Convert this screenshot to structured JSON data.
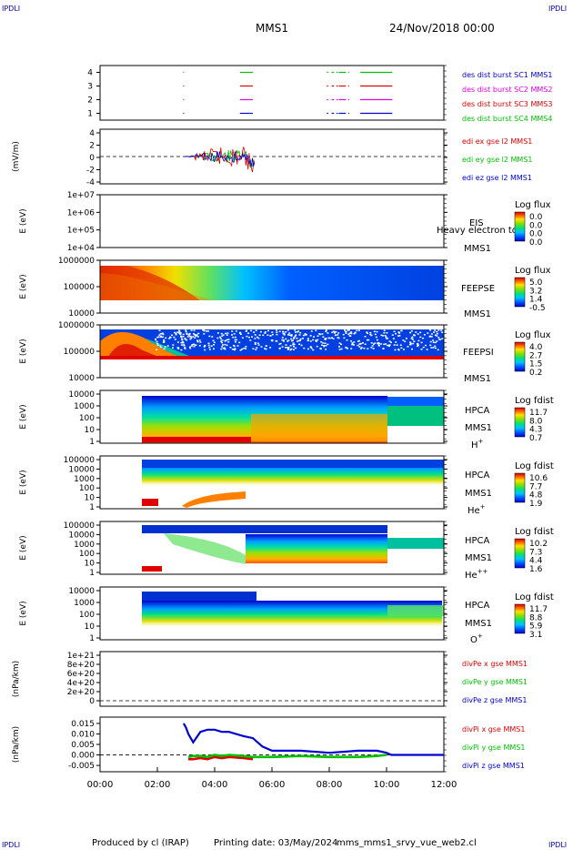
{
  "header": {
    "corner_tl": "IPDLI",
    "corner_tr": "IPDLI",
    "corner_bl": "IPDLI",
    "corner_br": "IPDLI",
    "mission": "MMS1",
    "date": "24/Nov/2018 00:00"
  },
  "footer": {
    "produced": "Produced by cl (IRAP)",
    "printing": "Printing date: 03/May/2024",
    "file": "mms_mms1_srvy_vue_web2.cl"
  },
  "colors": {
    "red": "#e00000",
    "green": "#00c000",
    "blue": "#0000d0",
    "magenta": "#e000e0",
    "black": "#000000"
  },
  "chart_data": [
    {
      "type": "line",
      "panel": "burst",
      "ylabel": "",
      "yticks": [
        "4",
        "3",
        "2",
        "1"
      ],
      "series": [
        {
          "name": "des dist burst SC1 MMS1",
          "color": "#0000d0",
          "level": 1,
          "intervals": [
            [
              "02:54",
              "02:56"
            ],
            [
              "04:53",
              "05:20"
            ],
            [
              "07:55",
              "07:58"
            ],
            [
              "08:05",
              "08:10"
            ],
            [
              "08:15",
              "08:18"
            ],
            [
              "08:20",
              "08:35"
            ],
            [
              "08:40",
              "08:42"
            ],
            [
              "09:05",
              "10:12"
            ]
          ]
        },
        {
          "name": "des dist burst SC2 MMS2",
          "color": "#e000e0",
          "level": 2,
          "intervals": [
            [
              "02:54",
              "02:56"
            ],
            [
              "04:53",
              "05:20"
            ],
            [
              "07:55",
              "07:58"
            ],
            [
              "08:05",
              "08:10"
            ],
            [
              "08:15",
              "08:18"
            ],
            [
              "08:20",
              "08:35"
            ],
            [
              "08:40",
              "08:42"
            ],
            [
              "09:05",
              "10:12"
            ]
          ]
        },
        {
          "name": "des dist burst SC3 MMS3",
          "color": "#e00000",
          "level": 3,
          "intervals": [
            [
              "02:54",
              "02:56"
            ],
            [
              "04:53",
              "05:20"
            ],
            [
              "07:55",
              "07:58"
            ],
            [
              "08:05",
              "08:10"
            ],
            [
              "08:15",
              "08:18"
            ],
            [
              "08:20",
              "08:35"
            ],
            [
              "08:40",
              "08:42"
            ],
            [
              "09:05",
              "10:12"
            ]
          ]
        },
        {
          "name": "des dist burst SC4 MMS4",
          "color": "#00c000",
          "level": 4,
          "intervals": [
            [
              "02:54",
              "02:56"
            ],
            [
              "04:53",
              "05:20"
            ],
            [
              "07:55",
              "07:58"
            ],
            [
              "08:05",
              "08:10"
            ],
            [
              "08:15",
              "08:18"
            ],
            [
              "08:20",
              "08:35"
            ],
            [
              "08:40",
              "08:42"
            ],
            [
              "09:05",
              "10:12"
            ]
          ]
        }
      ]
    },
    {
      "type": "line",
      "panel": "edi",
      "ylabel": "(mV/m)",
      "ylim": [
        -4,
        4
      ],
      "yticks": [
        "4",
        "2",
        "0",
        "-2",
        "-4"
      ],
      "data_range": [
        "02:55",
        "05:25"
      ],
      "series": [
        {
          "name": "edi ex gse l2 MMS1",
          "color": "#e00000"
        },
        {
          "name": "edi ey gse l2 MMS1",
          "color": "#00c000"
        },
        {
          "name": "edi ez gse l2 MMS1",
          "color": "#0000d0"
        }
      ]
    },
    {
      "type": "heatmap",
      "panel": "eis",
      "ylabel": "E (eV)",
      "yticks": [
        "1e+07",
        "1e+06",
        "1e+05",
        "1e+04"
      ],
      "instrument": "EIS",
      "species": "Heavy electron tof",
      "spacecraft": "MMS1",
      "colorbar_title": "Log flux",
      "colorbar_ticks": [
        "0.0",
        "0.0",
        "0.0",
        "0.0"
      ]
    },
    {
      "type": "heatmap",
      "panel": "feepse",
      "ylabel": "E (eV)",
      "yticks": [
        "1000000",
        "100000",
        "10000"
      ],
      "instrument": "FEEPSE",
      "spacecraft": "MMS1",
      "colorbar_title": "Log flux",
      "colorbar_ticks": [
        "5.0",
        "3.2",
        "1.4",
        "-0.5"
      ]
    },
    {
      "type": "heatmap",
      "panel": "feepsi",
      "ylabel": "E (eV)",
      "yticks": [
        "1000000",
        "100000",
        "10000"
      ],
      "instrument": "FEEPSI",
      "spacecraft": "MMS1",
      "colorbar_title": "Log flux",
      "colorbar_ticks": [
        "4.0",
        "2.7",
        "1.5",
        "0.2"
      ]
    },
    {
      "type": "heatmap",
      "panel": "hpca-h",
      "ylabel": "E (eV)",
      "yticks": [
        "10000",
        "1000",
        "100",
        "10",
        "1"
      ],
      "instrument": "HPCA",
      "spacecraft": "MMS1",
      "species_base": "H",
      "species_sup": "+",
      "colorbar_title": "Log fdist",
      "colorbar_ticks": [
        "11.7",
        "8.0",
        "4.3",
        "0.7"
      ]
    },
    {
      "type": "heatmap",
      "panel": "hpca-he",
      "ylabel": "E (eV)",
      "yticks": [
        "100000",
        "10000",
        "1000",
        "100",
        "10",
        "1"
      ],
      "instrument": "HPCA",
      "spacecraft": "MMS1",
      "species_base": "He",
      "species_sup": "+",
      "colorbar_title": "Log fdist",
      "colorbar_ticks": [
        "10.6",
        "7.7",
        "4.8",
        "1.9"
      ]
    },
    {
      "type": "heatmap",
      "panel": "hpca-hepp",
      "ylabel": "E (eV)",
      "yticks": [
        "100000",
        "10000",
        "1000",
        "100",
        "10",
        "1"
      ],
      "instrument": "HPCA",
      "spacecraft": "MMS1",
      "species_base": "He",
      "species_sup": "++",
      "colorbar_title": "Log fdist",
      "colorbar_ticks": [
        "10.2",
        "7.3",
        "4.4",
        "1.6"
      ]
    },
    {
      "type": "heatmap",
      "panel": "hpca-o",
      "ylabel": "E (eV)",
      "yticks": [
        "10000",
        "1000",
        "100",
        "10",
        "1"
      ],
      "instrument": "HPCA",
      "spacecraft": "MMS1",
      "species_base": "O",
      "species_sup": "+",
      "colorbar_title": "Log fdist",
      "colorbar_ticks": [
        "11.7",
        "8.8",
        "5.9",
        "3.1"
      ]
    },
    {
      "type": "line",
      "panel": "divpe",
      "ylabel": "(nPa/km)",
      "ylim": [
        0,
        1e+21
      ],
      "yticks": [
        "1e+21",
        "8e+20",
        "6e+20",
        "4e+20",
        "2e+20",
        "0"
      ],
      "series": [
        {
          "name": "divPe x gse MMS1",
          "color": "#e00000"
        },
        {
          "name": "divPe y gse MMS1",
          "color": "#00c000"
        },
        {
          "name": "divPe z gse MMS1",
          "color": "#0000d0"
        }
      ]
    },
    {
      "type": "line",
      "panel": "divpi",
      "ylabel": "(nPa/km)",
      "ylim": [
        -0.008,
        0.018
      ],
      "yticks": [
        "0.015",
        "0.010",
        "0.005",
        "0.000",
        "-0.005"
      ],
      "x": [
        "02:55",
        "03:00",
        "03:05",
        "03:15",
        "03:30",
        "03:45",
        "04:00",
        "04:15",
        "04:30",
        "05:00",
        "05:20",
        "05:40",
        "06:00",
        "07:00",
        "08:00",
        "09:00",
        "09:40",
        "10:00",
        "10:10",
        "11:00",
        "12:00"
      ],
      "series": [
        {
          "name": "divPi x gse MMS1",
          "color": "#e00000",
          "values": [
            null,
            null,
            -0.002,
            -0.002,
            -0.0015,
            -0.002,
            -0.001,
            -0.0015,
            -0.001,
            -0.0015,
            -0.002,
            null,
            null,
            null,
            null,
            null,
            null,
            null,
            null,
            null,
            null
          ]
        },
        {
          "name": "divPi y gse MMS1",
          "color": "#00c000",
          "values": [
            null,
            null,
            -0.001,
            -0.0005,
            -0.0005,
            -0.001,
            0.0,
            -0.0005,
            0.0,
            -0.0005,
            -0.001,
            -0.001,
            -0.001,
            -0.0005,
            -0.001,
            -0.001,
            -0.0005,
            0.0,
            null,
            null,
            null
          ]
        },
        {
          "name": "divPi z gse MMS1",
          "color": "#0000d0",
          "values": [
            0.015,
            0.013,
            0.01,
            0.006,
            0.011,
            0.012,
            0.012,
            0.011,
            0.011,
            0.009,
            0.008,
            0.004,
            0.002,
            0.002,
            0.001,
            0.002,
            0.002,
            0.001,
            0.0,
            0.0,
            0.0
          ]
        }
      ]
    }
  ],
  "xaxis": {
    "ticks": [
      "00:00",
      "02:00",
      "04:00",
      "06:00",
      "08:00",
      "10:00",
      "12:00"
    ],
    "range": [
      "00:00",
      "12:00"
    ]
  }
}
